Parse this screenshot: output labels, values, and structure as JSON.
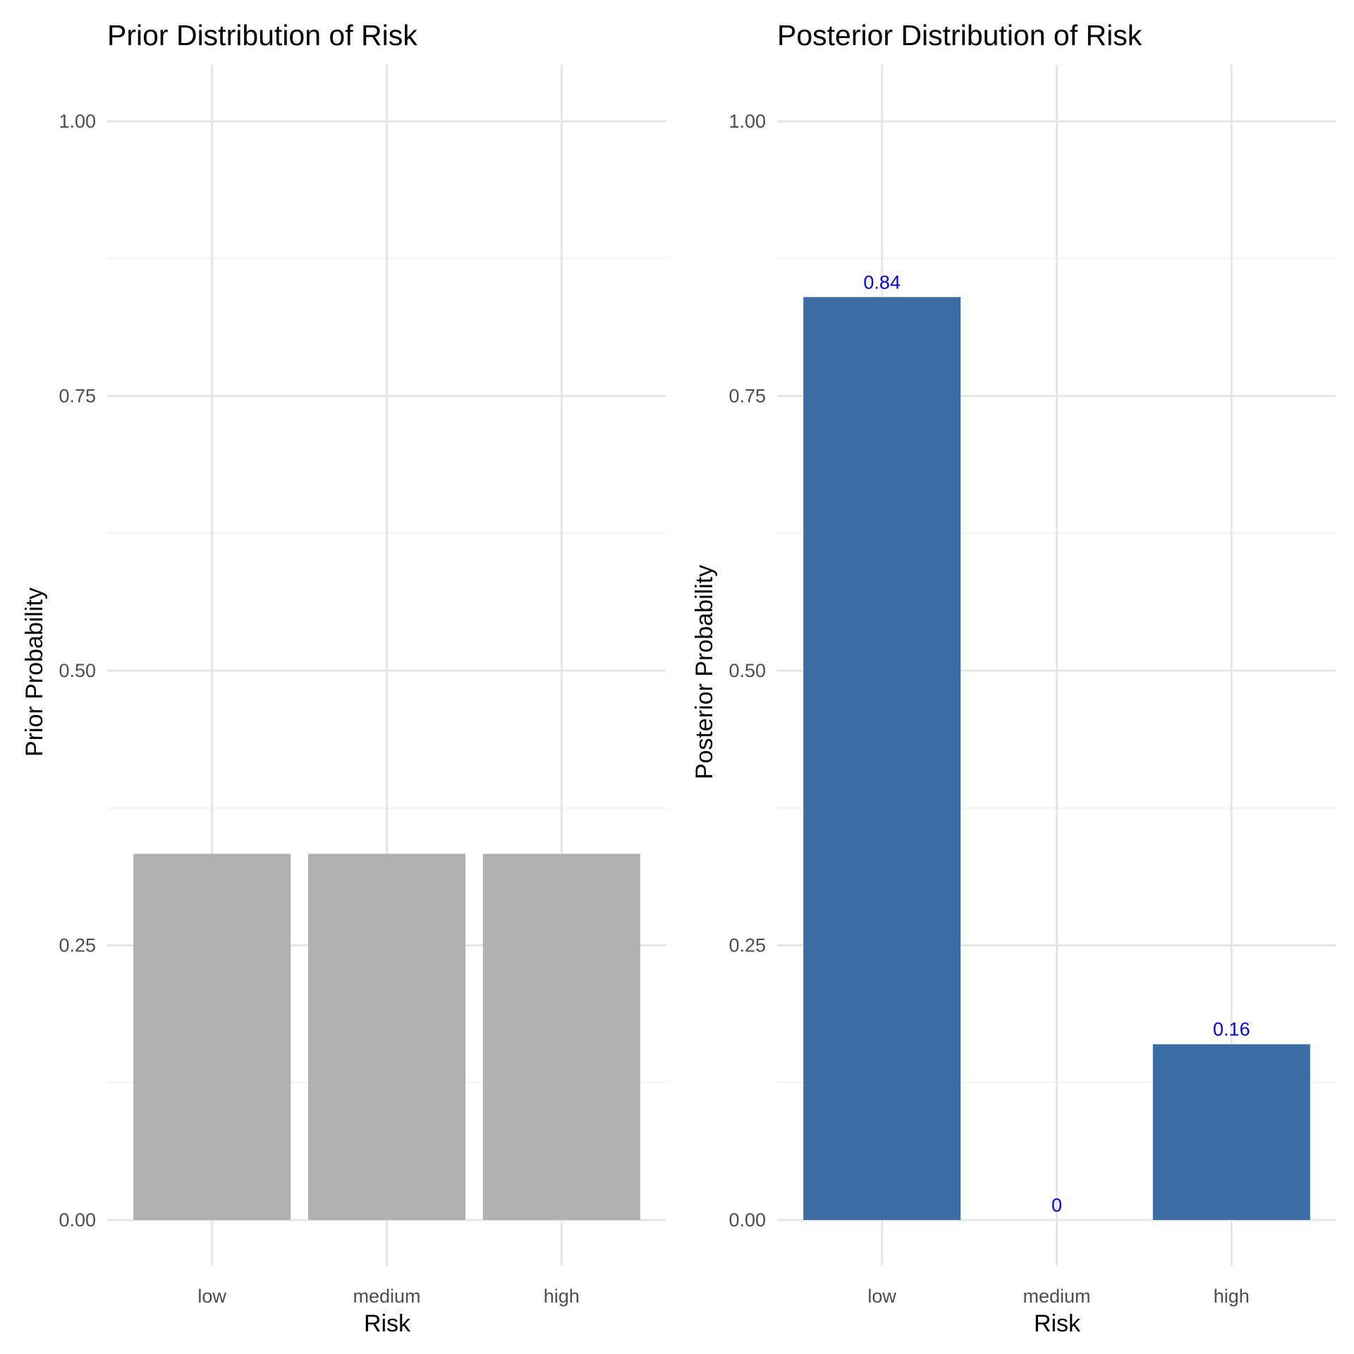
{
  "chart_data": [
    {
      "type": "bar",
      "title": "Prior Distribution of Risk",
      "xlabel": "Risk",
      "ylabel": "Prior Probability",
      "categories": [
        "low",
        "medium",
        "high"
      ],
      "values": [
        0.3333,
        0.3333,
        0.3333
      ],
      "ylim": [
        0,
        1
      ],
      "yticks": [
        "0.00",
        "0.25",
        "0.50",
        "0.75",
        "1.00"
      ],
      "bar_color": "#b0b0b0",
      "data_labels": [],
      "grid": true,
      "legend": "none"
    },
    {
      "type": "bar",
      "title": "Posterior Distribution of Risk",
      "xlabel": "Risk",
      "ylabel": "Posterior Probability",
      "categories": [
        "low",
        "medium",
        "high"
      ],
      "values": [
        0.84,
        0,
        0.16
      ],
      "ylim": [
        0,
        1
      ],
      "yticks": [
        "0.00",
        "0.25",
        "0.50",
        "0.75",
        "1.00"
      ],
      "bar_color": "#3a6ea5",
      "data_labels": [
        "0.84",
        "0",
        "0.16"
      ],
      "data_label_color": "#0000ff",
      "grid": true,
      "legend": "none"
    }
  ]
}
